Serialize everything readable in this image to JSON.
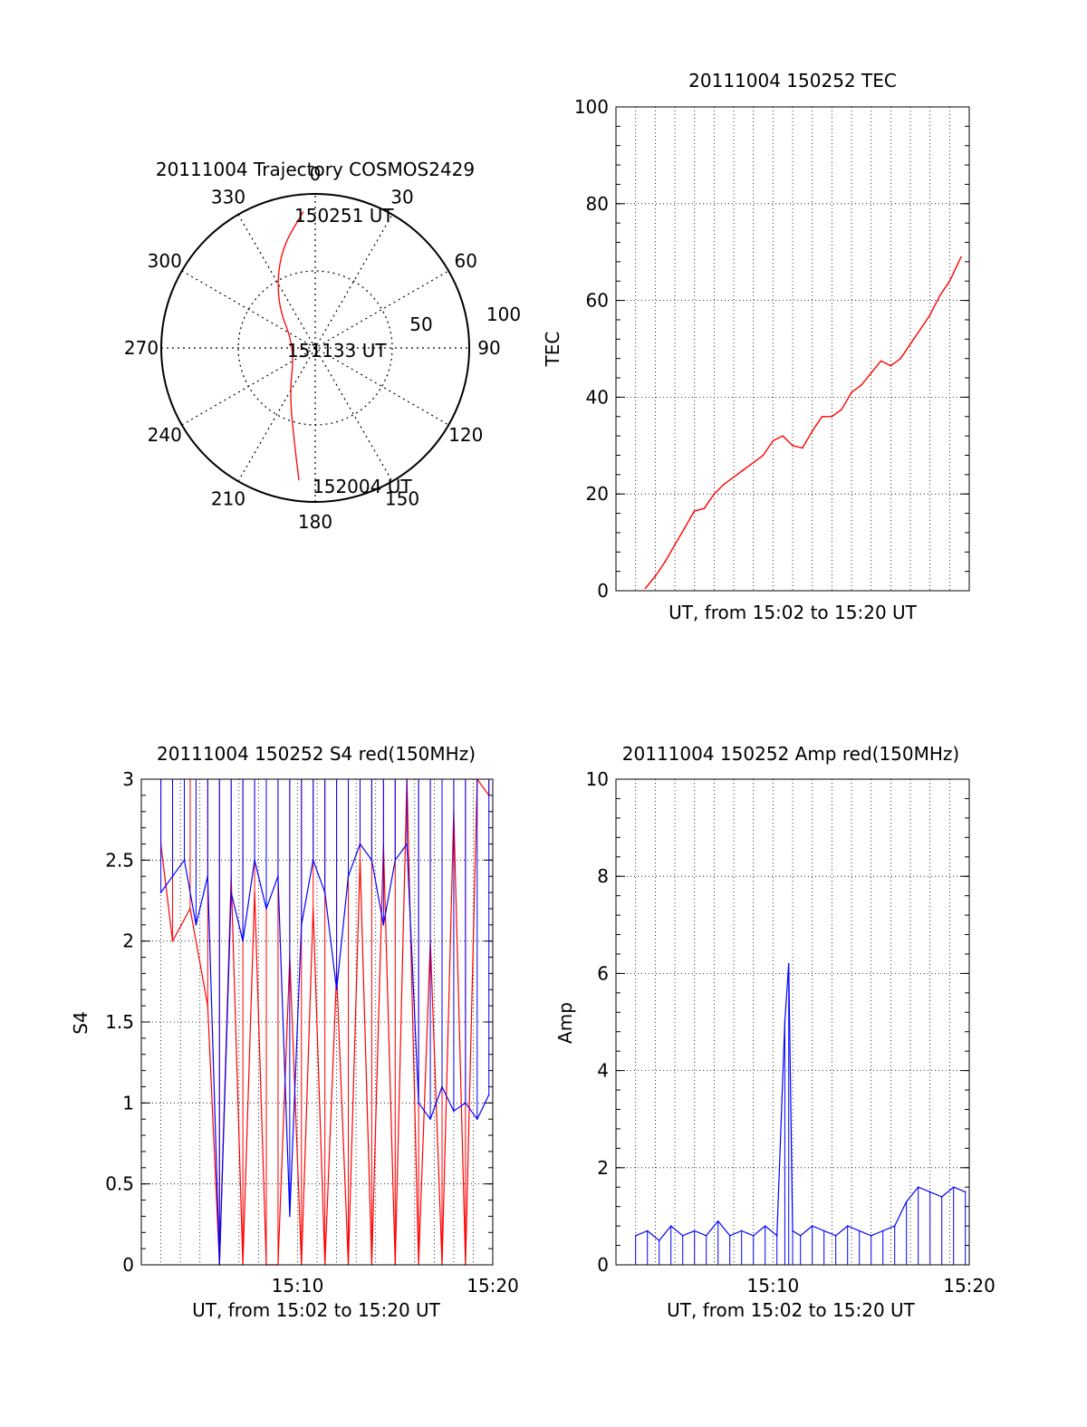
{
  "chart_data": [
    {
      "type": "polar",
      "title": "20111004 Trajectory COSMOS2429",
      "azimuth_labels": [
        "0",
        "30",
        "60",
        "90",
        "120",
        "150",
        "180",
        "210",
        "240",
        "270",
        "300",
        "330"
      ],
      "radial_labels": [
        "50",
        "100"
      ],
      "trajectory": {
        "color": "#ff0000",
        "points": [
          {
            "az": 355,
            "elev": 10
          },
          {
            "az": 340,
            "elev": 30
          },
          {
            "az": 320,
            "elev": 55
          },
          {
            "az": 270,
            "elev": 78
          },
          {
            "az": 210,
            "elev": 60
          },
          {
            "az": 193,
            "elev": 35
          },
          {
            "az": 187,
            "elev": 12
          }
        ],
        "labels": [
          "150251 UT",
          "151133 UT",
          "152004 UT"
        ]
      }
    },
    {
      "type": "line",
      "title": "20111004 150252 TEC",
      "xlabel": "UT, from 15:02 to 15:20 UT",
      "ylabel": "TEC",
      "xlim": [
        15.0333,
        15.3333
      ],
      "ylim": [
        0,
        100
      ],
      "yticks": [
        "0",
        "20",
        "40",
        "60",
        "80",
        "100"
      ],
      "xticks": [],
      "grid": true,
      "series": [
        {
          "color": "#ff0000",
          "x": [
            15.0583,
            15.0667,
            15.075,
            15.0833,
            15.0917,
            15.1,
            15.1083,
            15.1167,
            15.125,
            15.1333,
            15.1417,
            15.15,
            15.1583,
            15.1667,
            15.175,
            15.1833,
            15.1917,
            15.2,
            15.2083,
            15.2167,
            15.225,
            15.2333,
            15.2417,
            15.25,
            15.2583,
            15.2667,
            15.275,
            15.2833,
            15.2917,
            15.3,
            15.3083,
            15.3167,
            15.3264
          ],
          "y": [
            0.5,
            3,
            6,
            9.5,
            13,
            16.5,
            17,
            20,
            22,
            23.5,
            25,
            26.5,
            28,
            31,
            32,
            30,
            29.5,
            33,
            36,
            36,
            37.5,
            41,
            42.5,
            45,
            47.5,
            46.5,
            48,
            51,
            54,
            57,
            61,
            64,
            69
          ]
        }
      ]
    },
    {
      "type": "line",
      "title": "20111004 150252 S4 red(150MHz)",
      "xlabel": "UT, from 15:02 to 15:20 UT",
      "ylabel": "S4",
      "xlim": [
        15.0333,
        15.3333
      ],
      "ylim": [
        0,
        3
      ],
      "xticks": [
        "15:10",
        "15:20"
      ],
      "yticks": [
        "0",
        "0.5",
        "1",
        "1.5",
        "2",
        "2.5",
        "3"
      ],
      "grid": true,
      "series": [
        {
          "color": "#ff0000",
          "x": [
            15.05,
            15.06,
            15.075,
            15.09,
            15.1,
            15.11,
            15.12,
            15.13,
            15.14,
            15.15,
            15.16,
            15.17,
            15.18,
            15.19,
            15.2,
            15.21,
            15.22,
            15.23,
            15.24,
            15.25,
            15.26,
            15.27,
            15.28,
            15.29,
            15.3,
            15.31,
            15.32,
            15.33
          ],
          "y": [
            2.6,
            2.0,
            2.2,
            1.6,
            0.0,
            2.4,
            0.0,
            2.3,
            0.0,
            0.0,
            1.9,
            0.0,
            2.2,
            0.0,
            1.8,
            0.0,
            2.5,
            0.0,
            2.6,
            0.0,
            3.0,
            0.0,
            2.0,
            0.0,
            2.8,
            0.0,
            3.0,
            2.9
          ]
        },
        {
          "color": "#0000ff",
          "x": [
            15.05,
            15.06,
            15.07,
            15.08,
            15.09,
            15.1,
            15.11,
            15.12,
            15.13,
            15.14,
            15.15,
            15.16,
            15.17,
            15.18,
            15.19,
            15.2,
            15.21,
            15.22,
            15.23,
            15.24,
            15.25,
            15.26,
            15.27,
            15.28,
            15.29,
            15.3,
            15.31,
            15.32,
            15.33
          ],
          "y": [
            2.3,
            2.4,
            2.5,
            2.1,
            2.4,
            0.0,
            2.3,
            2.0,
            2.5,
            2.2,
            2.4,
            0.3,
            2.1,
            2.5,
            2.3,
            1.7,
            2.4,
            2.6,
            2.5,
            2.1,
            2.5,
            2.6,
            1.0,
            0.9,
            1.1,
            0.95,
            1.0,
            0.9,
            1.05
          ]
        }
      ]
    },
    {
      "type": "line",
      "title": "20111004 150252 Amp red(150MHz)",
      "xlabel": "UT, from 15:02 to 15:20 UT",
      "ylabel": "Amp",
      "xlim": [
        15.0333,
        15.3333
      ],
      "ylim": [
        0,
        10
      ],
      "xticks": [
        "15:10",
        "15:20"
      ],
      "yticks": [
        "0",
        "2",
        "4",
        "6",
        "8",
        "10"
      ],
      "grid": true,
      "series": [
        {
          "color": "#0000ff",
          "x": [
            15.05,
            15.06,
            15.07,
            15.08,
            15.09,
            15.1,
            15.11,
            15.12,
            15.13,
            15.14,
            15.15,
            15.16,
            15.17,
            15.1767,
            15.18,
            15.1833,
            15.19,
            15.2,
            15.21,
            15.22,
            15.23,
            15.24,
            15.25,
            15.26,
            15.27,
            15.28,
            15.29,
            15.3,
            15.31,
            15.32,
            15.33
          ],
          "y": [
            0.6,
            0.7,
            0.5,
            0.8,
            0.6,
            0.7,
            0.6,
            0.9,
            0.6,
            0.7,
            0.6,
            0.8,
            0.6,
            5.0,
            6.2,
            0.7,
            0.6,
            0.8,
            0.7,
            0.6,
            0.8,
            0.7,
            0.6,
            0.7,
            0.8,
            1.3,
            1.6,
            1.5,
            1.4,
            1.6,
            1.5
          ]
        }
      ]
    }
  ]
}
